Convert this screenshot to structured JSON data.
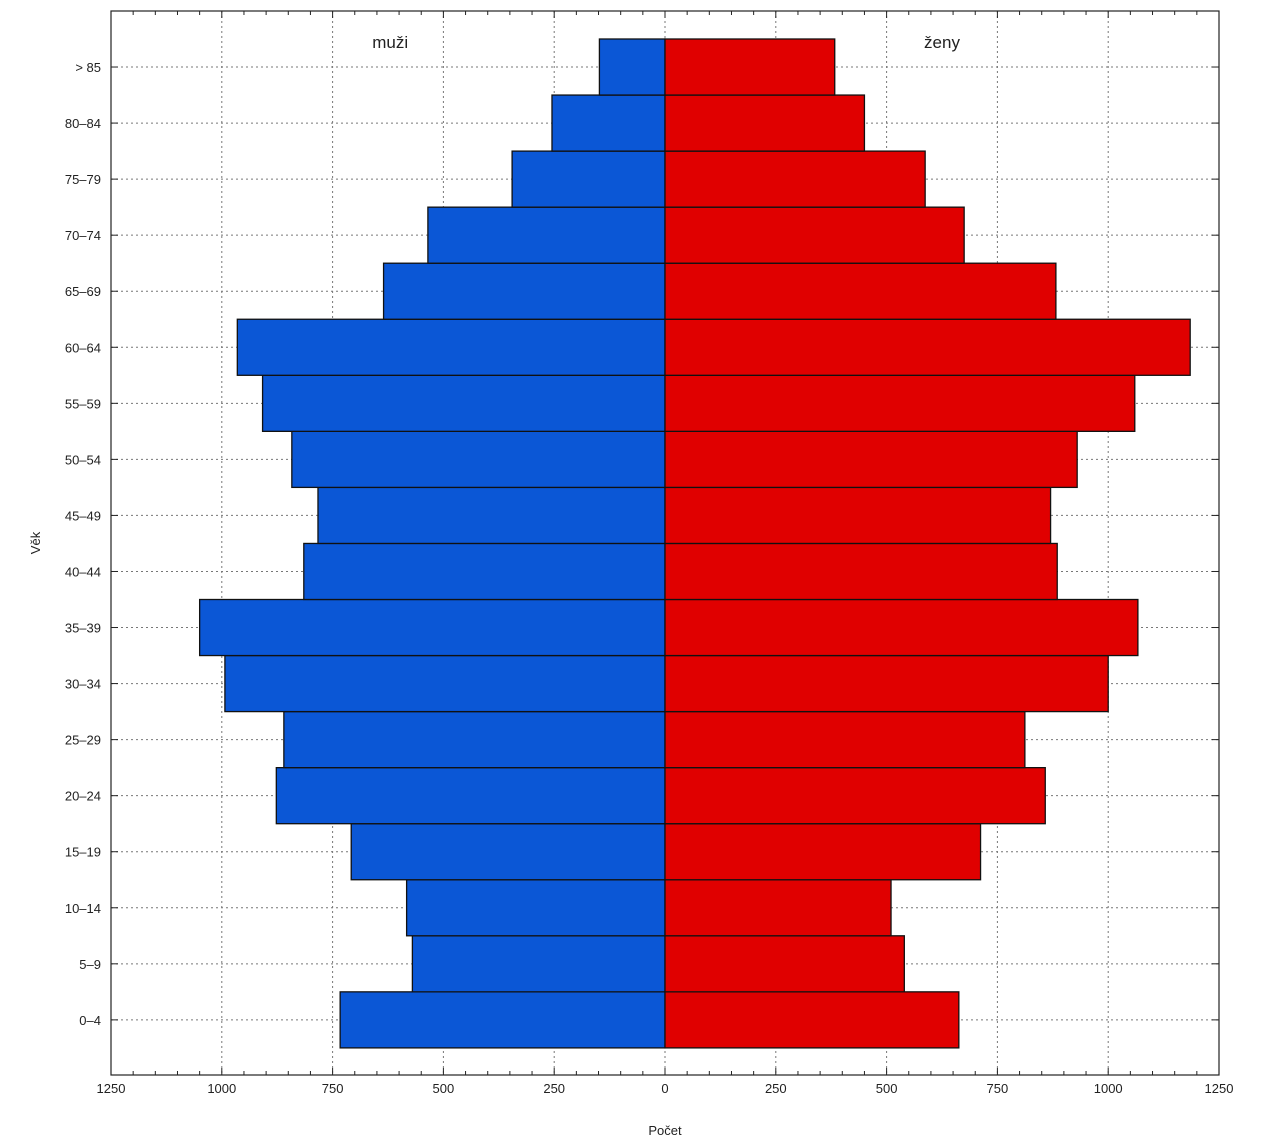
{
  "chart_data": {
    "type": "bar",
    "orientation": "horizontal",
    "layout": "population-pyramid",
    "categories": [
      "0–4",
      "5–9",
      "10–14",
      "15–19",
      "20–24",
      "25–29",
      "30–34",
      "35–39",
      "40–44",
      "45–49",
      "50–54",
      "55–59",
      "60–64",
      "65–69",
      "70–74",
      "75–79",
      "80–84",
      "> 85"
    ],
    "series": [
      {
        "name": "muži",
        "side": "left",
        "color": "#0b57d6",
        "values": [
          733,
          570,
          583,
          708,
          877,
          860,
          993,
          1050,
          815,
          783,
          842,
          908,
          965,
          635,
          535,
          345,
          255,
          148
        ]
      },
      {
        "name": "ženy",
        "side": "right",
        "color": "#e00000",
        "values": [
          663,
          540,
          510,
          712,
          858,
          812,
          1000,
          1067,
          885,
          870,
          930,
          1060,
          1185,
          882,
          675,
          587,
          450,
          383
        ]
      }
    ],
    "xlabel": "Počet",
    "ylabel": "Věk",
    "xlim": [
      -1250,
      1250
    ],
    "xticks": [
      -1250,
      -1000,
      -750,
      -500,
      -250,
      0,
      250,
      500,
      750,
      1000,
      1250
    ],
    "xtick_labels": [
      "1250",
      "1000",
      "750",
      "500",
      "250",
      "0",
      "250",
      "500",
      "750",
      "1000",
      "1250"
    ],
    "grid": true
  }
}
